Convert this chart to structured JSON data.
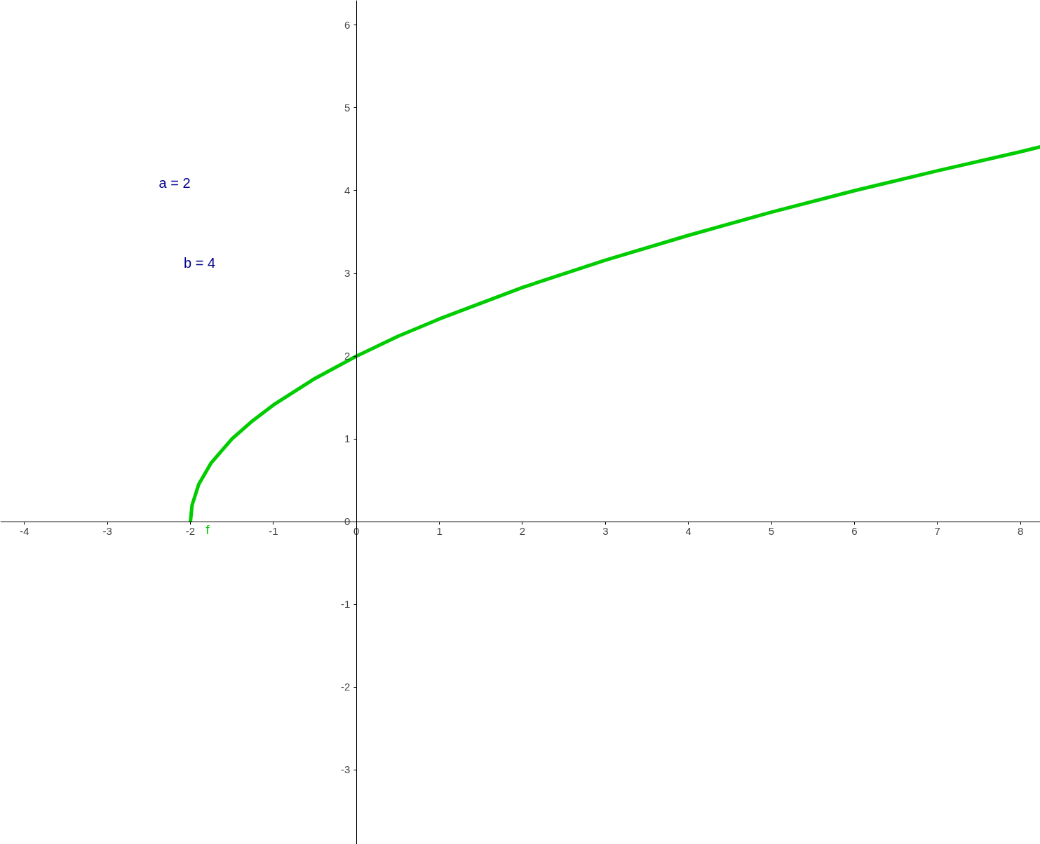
{
  "chart_data": {
    "type": "line",
    "x": [
      -2,
      -1.98,
      -1.9,
      -1.75,
      -1.5,
      -1.25,
      -1,
      -0.5,
      0,
      0.5,
      1,
      2,
      3,
      4,
      5,
      6,
      7,
      8,
      8.24
    ],
    "series": [
      {
        "name": "f",
        "color": "#00cc00",
        "values": [
          0,
          0.2,
          0.45,
          0.71,
          1,
          1.22,
          1.41,
          1.73,
          2,
          2.24,
          2.45,
          2.83,
          3.16,
          3.46,
          3.74,
          4,
          4.24,
          4.47,
          4.53
        ]
      }
    ],
    "xlim": [
      -4.29,
      8.24
    ],
    "ylim": [
      -3.9,
      6.3
    ],
    "xticks": [
      -4,
      -3,
      -2,
      -1,
      0,
      1,
      2,
      3,
      4,
      5,
      6,
      7,
      8
    ],
    "yticks": [
      -3,
      -2,
      -1,
      0,
      1,
      2,
      3,
      4,
      5,
      6
    ],
    "marker": "none",
    "line_style": "solid",
    "annotations": [
      "a = 2",
      "b = 4"
    ]
  }
}
